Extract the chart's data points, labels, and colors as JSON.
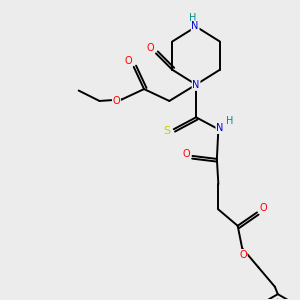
{
  "bg_color": "#ececec",
  "atom_colors": {
    "O": "#ff0000",
    "N": "#0000cd",
    "S": "#cccc00",
    "H": "#008b8b",
    "C": "#000000"
  },
  "bond_color": "#000000",
  "bond_width": 1.4,
  "dbo": 0.09
}
